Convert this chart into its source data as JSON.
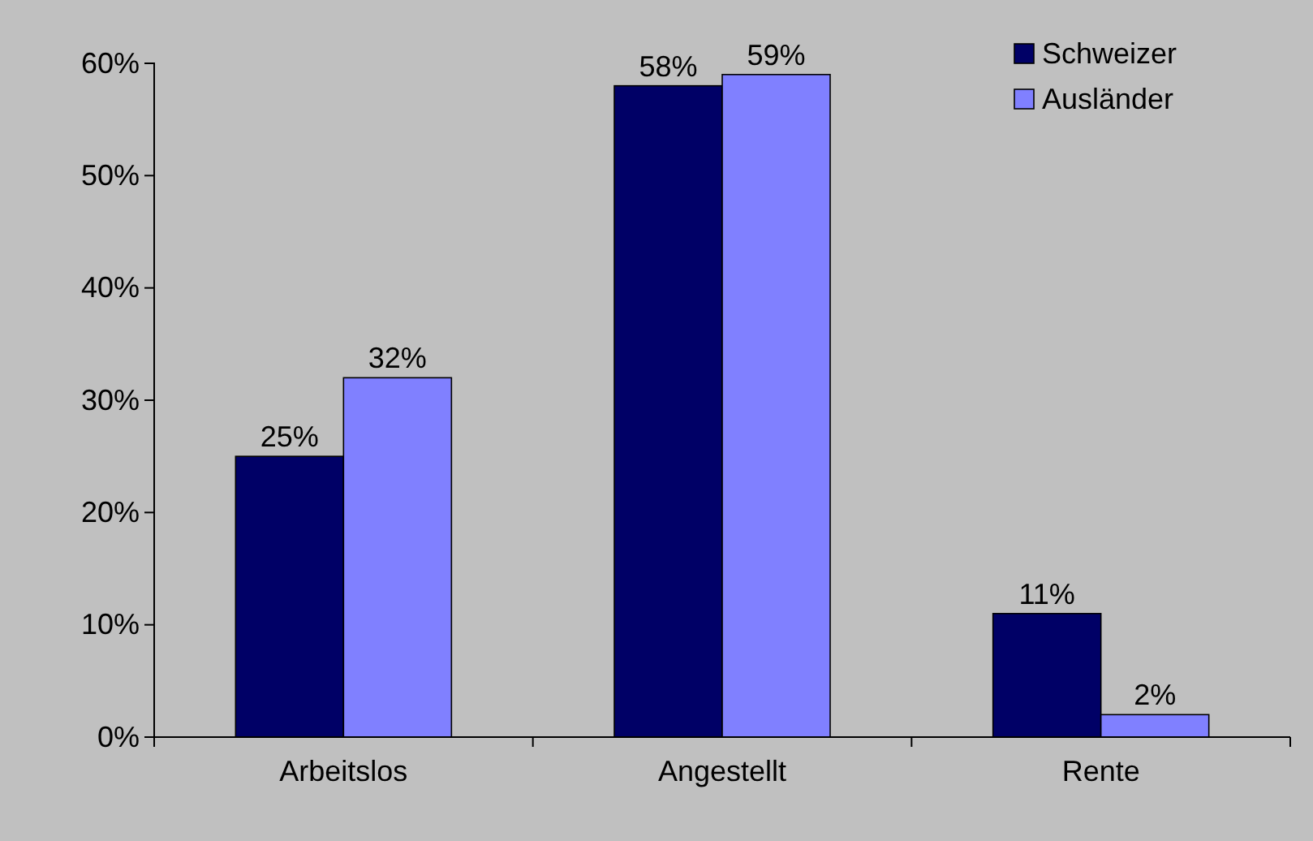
{
  "chart_data": {
    "type": "bar",
    "categories": [
      "Arbeitslos",
      "Angestellt",
      "Rente"
    ],
    "series": [
      {
        "name": "Schweizer",
        "color": "#000066",
        "values": [
          25,
          58,
          11
        ],
        "value_labels": [
          "25%",
          "58%",
          "11%"
        ]
      },
      {
        "name": "Ausländer",
        "color": "#8080ff",
        "values": [
          32,
          59,
          2
        ],
        "value_labels": [
          "32%",
          "59%",
          "2%"
        ]
      }
    ],
    "ylim": [
      0,
      60
    ],
    "yticks": [
      {
        "value": 0,
        "label": "0%"
      },
      {
        "value": 10,
        "label": "10%"
      },
      {
        "value": 20,
        "label": "20%"
      },
      {
        "value": 30,
        "label": "30%"
      },
      {
        "value": 40,
        "label": "40%"
      },
      {
        "value": 50,
        "label": "50%"
      },
      {
        "value": 60,
        "label": "60%"
      }
    ],
    "grid": false,
    "legend": "top right"
  }
}
